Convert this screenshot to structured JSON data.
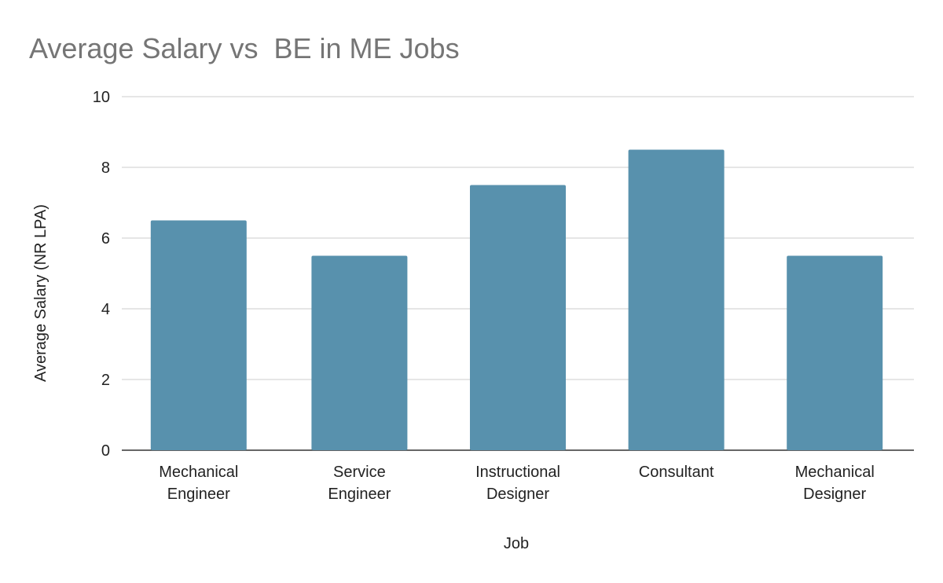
{
  "chart_data": {
    "type": "bar",
    "title": "Average Salary vs  BE in ME Jobs",
    "xlabel": "Job",
    "ylabel": "Average Salary (NR LPA)",
    "categories": [
      [
        "Mechanical",
        "Engineer"
      ],
      [
        "Service",
        "Engineer"
      ],
      [
        "Instructional",
        "Designer"
      ],
      [
        "Consultant"
      ],
      [
        "Mechanical",
        "Designer"
      ]
    ],
    "values": [
      6.5,
      5.5,
      7.5,
      8.5,
      5.5
    ],
    "ylim": [
      0,
      10
    ],
    "yticks": [
      "0",
      "2",
      "4",
      "6",
      "8",
      "10"
    ],
    "grid": true,
    "bar_color": "#5891ad"
  }
}
